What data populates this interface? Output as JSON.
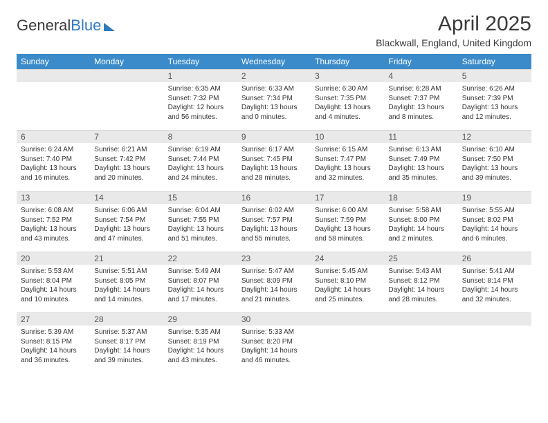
{
  "brand": {
    "part1": "General",
    "part2": "Blue"
  },
  "title": "April 2025",
  "location": "Blackwall, England, United Kingdom",
  "colors": {
    "header_bg": "#3b8bca",
    "header_text": "#ffffff",
    "daynum_bg": "#e9e9e9",
    "text": "#333333",
    "brand_accent": "#2f7bc0"
  },
  "weekdays": [
    "Sunday",
    "Monday",
    "Tuesday",
    "Wednesday",
    "Thursday",
    "Friday",
    "Saturday"
  ],
  "weeks": [
    [
      null,
      null,
      {
        "n": "1",
        "sr": "6:35 AM",
        "ss": "7:32 PM",
        "dl": "12 hours and 56 minutes."
      },
      {
        "n": "2",
        "sr": "6:33 AM",
        "ss": "7:34 PM",
        "dl": "13 hours and 0 minutes."
      },
      {
        "n": "3",
        "sr": "6:30 AM",
        "ss": "7:35 PM",
        "dl": "13 hours and 4 minutes."
      },
      {
        "n": "4",
        "sr": "6:28 AM",
        "ss": "7:37 PM",
        "dl": "13 hours and 8 minutes."
      },
      {
        "n": "5",
        "sr": "6:26 AM",
        "ss": "7:39 PM",
        "dl": "13 hours and 12 minutes."
      }
    ],
    [
      {
        "n": "6",
        "sr": "6:24 AM",
        "ss": "7:40 PM",
        "dl": "13 hours and 16 minutes."
      },
      {
        "n": "7",
        "sr": "6:21 AM",
        "ss": "7:42 PM",
        "dl": "13 hours and 20 minutes."
      },
      {
        "n": "8",
        "sr": "6:19 AM",
        "ss": "7:44 PM",
        "dl": "13 hours and 24 minutes."
      },
      {
        "n": "9",
        "sr": "6:17 AM",
        "ss": "7:45 PM",
        "dl": "13 hours and 28 minutes."
      },
      {
        "n": "10",
        "sr": "6:15 AM",
        "ss": "7:47 PM",
        "dl": "13 hours and 32 minutes."
      },
      {
        "n": "11",
        "sr": "6:13 AM",
        "ss": "7:49 PM",
        "dl": "13 hours and 35 minutes."
      },
      {
        "n": "12",
        "sr": "6:10 AM",
        "ss": "7:50 PM",
        "dl": "13 hours and 39 minutes."
      }
    ],
    [
      {
        "n": "13",
        "sr": "6:08 AM",
        "ss": "7:52 PM",
        "dl": "13 hours and 43 minutes."
      },
      {
        "n": "14",
        "sr": "6:06 AM",
        "ss": "7:54 PM",
        "dl": "13 hours and 47 minutes."
      },
      {
        "n": "15",
        "sr": "6:04 AM",
        "ss": "7:55 PM",
        "dl": "13 hours and 51 minutes."
      },
      {
        "n": "16",
        "sr": "6:02 AM",
        "ss": "7:57 PM",
        "dl": "13 hours and 55 minutes."
      },
      {
        "n": "17",
        "sr": "6:00 AM",
        "ss": "7:59 PM",
        "dl": "13 hours and 58 minutes."
      },
      {
        "n": "18",
        "sr": "5:58 AM",
        "ss": "8:00 PM",
        "dl": "14 hours and 2 minutes."
      },
      {
        "n": "19",
        "sr": "5:55 AM",
        "ss": "8:02 PM",
        "dl": "14 hours and 6 minutes."
      }
    ],
    [
      {
        "n": "20",
        "sr": "5:53 AM",
        "ss": "8:04 PM",
        "dl": "14 hours and 10 minutes."
      },
      {
        "n": "21",
        "sr": "5:51 AM",
        "ss": "8:05 PM",
        "dl": "14 hours and 14 minutes."
      },
      {
        "n": "22",
        "sr": "5:49 AM",
        "ss": "8:07 PM",
        "dl": "14 hours and 17 minutes."
      },
      {
        "n": "23",
        "sr": "5:47 AM",
        "ss": "8:09 PM",
        "dl": "14 hours and 21 minutes."
      },
      {
        "n": "24",
        "sr": "5:45 AM",
        "ss": "8:10 PM",
        "dl": "14 hours and 25 minutes."
      },
      {
        "n": "25",
        "sr": "5:43 AM",
        "ss": "8:12 PM",
        "dl": "14 hours and 28 minutes."
      },
      {
        "n": "26",
        "sr": "5:41 AM",
        "ss": "8:14 PM",
        "dl": "14 hours and 32 minutes."
      }
    ],
    [
      {
        "n": "27",
        "sr": "5:39 AM",
        "ss": "8:15 PM",
        "dl": "14 hours and 36 minutes."
      },
      {
        "n": "28",
        "sr": "5:37 AM",
        "ss": "8:17 PM",
        "dl": "14 hours and 39 minutes."
      },
      {
        "n": "29",
        "sr": "5:35 AM",
        "ss": "8:19 PM",
        "dl": "14 hours and 43 minutes."
      },
      {
        "n": "30",
        "sr": "5:33 AM",
        "ss": "8:20 PM",
        "dl": "14 hours and 46 minutes."
      },
      null,
      null,
      null
    ]
  ],
  "labels": {
    "sunrise": "Sunrise: ",
    "sunset": "Sunset: ",
    "daylight": "Daylight: "
  }
}
